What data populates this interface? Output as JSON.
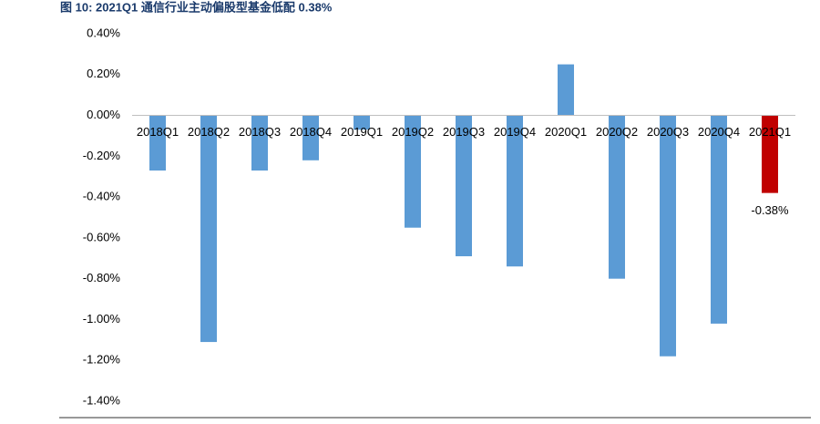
{
  "chart_data": {
    "type": "bar",
    "title": "图 10:  2021Q1 通信行业主动偏股型基金低配 0.38%",
    "categories": [
      "2018Q1",
      "2018Q2",
      "2018Q3",
      "2018Q4",
      "2019Q1",
      "2019Q2",
      "2019Q3",
      "2019Q4",
      "2020Q1",
      "2020Q2",
      "2020Q3",
      "2020Q4",
      "2021Q1"
    ],
    "values": [
      -0.27,
      -1.11,
      -0.27,
      -0.22,
      -0.07,
      -0.55,
      -0.69,
      -0.74,
      0.25,
      -0.8,
      -1.18,
      -1.02,
      -0.38
    ],
    "value_labels": [
      null,
      null,
      null,
      null,
      null,
      null,
      null,
      null,
      null,
      null,
      null,
      null,
      "-0.38%"
    ],
    "colors": [
      "#5b9bd5",
      "#5b9bd5",
      "#5b9bd5",
      "#5b9bd5",
      "#5b9bd5",
      "#5b9bd5",
      "#5b9bd5",
      "#5b9bd5",
      "#5b9bd5",
      "#5b9bd5",
      "#5b9bd5",
      "#5b9bd5",
      "#c00000"
    ],
    "ylim": [
      -1.4,
      0.4
    ],
    "yticks": [
      {
        "value": 0.4,
        "label": "0.40%"
      },
      {
        "value": 0.2,
        "label": "0.20%"
      },
      {
        "value": 0,
        "label": "0.00%"
      },
      {
        "value": -0.2,
        "label": "-0.20%"
      },
      {
        "value": -0.4,
        "label": "-0.40%"
      },
      {
        "value": -0.6,
        "label": "-0.60%"
      },
      {
        "value": -0.8,
        "label": "-0.80%"
      },
      {
        "value": -1.0,
        "label": "-1.00%"
      },
      {
        "value": -1.2,
        "label": "-1.20%"
      },
      {
        "value": -1.4,
        "label": "-1.40%"
      }
    ],
    "grid": false
  }
}
